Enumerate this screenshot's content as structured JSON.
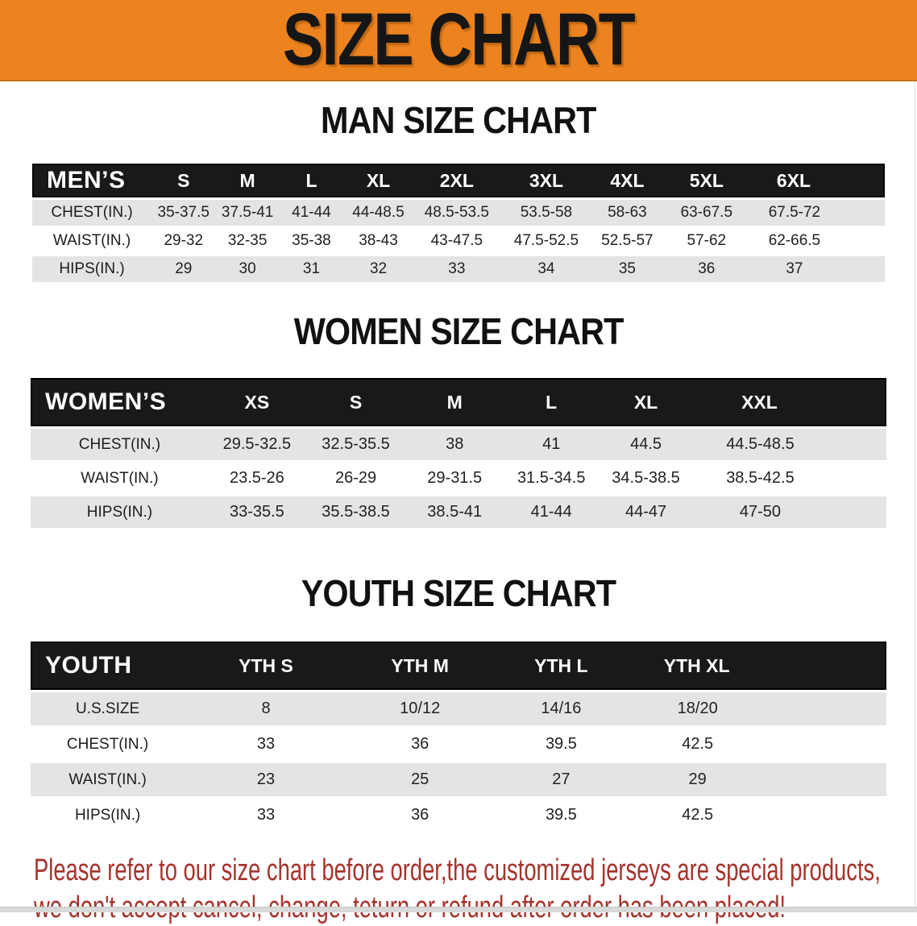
{
  "banner": {
    "title": "SIZE CHART"
  },
  "sections": [
    {
      "id": "men",
      "heading": "MAN SIZE CHART",
      "table": {
        "label": "MEN’S",
        "sizes": [
          "S",
          "M",
          "L",
          "XL",
          "2XL",
          "3XL",
          "4XL",
          "5XL",
          "6XL"
        ],
        "rows": [
          {
            "label": "CHEST(IN.)",
            "values": [
              "35-37.5",
              "37.5-41",
              "41-44",
              "44-48.5",
              "48.5-53.5",
              "53.5-58",
              "58-63",
              "63-67.5",
              "67.5-72"
            ]
          },
          {
            "label": "WAIST(IN.)",
            "values": [
              "29-32",
              "32-35",
              "35-38",
              "38-43",
              "43-47.5",
              "47.5-52.5",
              "52.5-57",
              "57-62",
              "62-66.5"
            ]
          },
          {
            "label": "HIPS(IN.)",
            "values": [
              "29",
              "30",
              "31",
              "32",
              "33",
              "34",
              "35",
              "36",
              "37"
            ]
          }
        ]
      }
    },
    {
      "id": "women",
      "heading": "WOMEN SIZE CHART",
      "table": {
        "label": "WOMEN’S",
        "sizes": [
          "XS",
          "S",
          "M",
          "L",
          "XL",
          "XXL"
        ],
        "rows": [
          {
            "label": "CHEST(IN.)",
            "values": [
              "29.5-32.5",
              "32.5-35.5",
              "38",
              "41",
              "44.5",
              "44.5-48.5"
            ]
          },
          {
            "label": "WAIST(IN.)",
            "values": [
              "23.5-26",
              "26-29",
              "29-31.5",
              "31.5-34.5",
              "34.5-38.5",
              "38.5-42.5"
            ]
          },
          {
            "label": "HIPS(IN.)",
            "values": [
              "33-35.5",
              "35.5-38.5",
              "38.5-41",
              "41-44",
              "44-47",
              "47-50"
            ]
          }
        ]
      }
    },
    {
      "id": "youth",
      "heading": "YOUTH SIZE CHART",
      "table": {
        "label": "YOUTH",
        "sizes": [
          "YTH S",
          "YTH M",
          "YTH L",
          "YTH XL"
        ],
        "rows": [
          {
            "label": "U.S.SIZE",
            "values": [
              "8",
              "10/12",
              "14/16",
              "18/20"
            ]
          },
          {
            "label": "CHEST(IN.)",
            "values": [
              "33",
              "36",
              "39.5",
              "42.5"
            ]
          },
          {
            "label": "WAIST(IN.)",
            "values": [
              "23",
              "25",
              "27",
              "29"
            ]
          },
          {
            "label": "HIPS(IN.)",
            "values": [
              "33",
              "36",
              "39.5",
              "42.5"
            ]
          }
        ]
      }
    }
  ],
  "footer": {
    "line1": "Please refer to our size chart before order,the customized jerseys are special products,",
    "line2": "we don't accept cancel, change, teturn or refund after order has been placed!"
  },
  "colors": {
    "banner_orange": "#EC831F",
    "table_header_black": "#191919",
    "row_gray": "#E4E4E6",
    "note_red": "#A6332C"
  }
}
